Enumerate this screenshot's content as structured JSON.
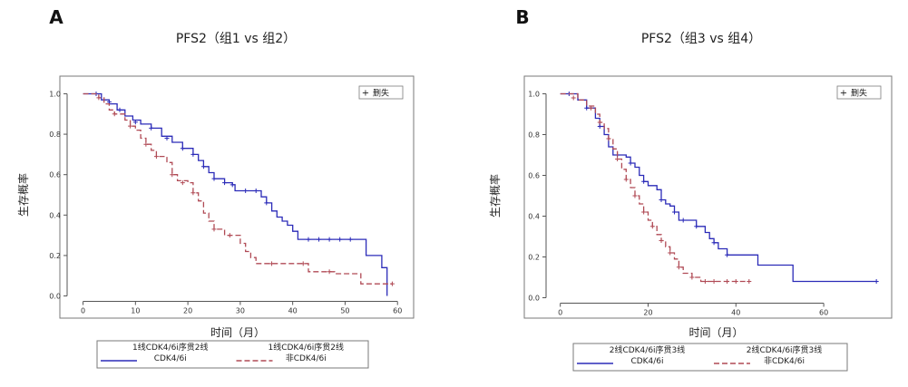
{
  "chart_data": [
    {
      "type": "line",
      "step": true,
      "panel_label": "A",
      "title": "PFS2（组1 vs 组2）",
      "xlabel": "时间（月）",
      "ylabel": "生存概率",
      "xlim": [
        -2,
        61
      ],
      "ylim": [
        -0.02,
        1.02
      ],
      "xticks": [
        0,
        10,
        20,
        30,
        40,
        50,
        60
      ],
      "xtick_labels": [
        "0",
        "10",
        "20",
        "30",
        "40",
        "50",
        "60"
      ],
      "yticks": [
        0.0,
        0.2,
        0.4,
        0.6,
        0.8,
        1.0
      ],
      "ytick_labels": [
        "0.0",
        "0.2",
        "0.4",
        "0.6",
        "0.8",
        "1.0"
      ],
      "inset_legend": {
        "symbol": "+",
        "label": "删失",
        "position": "top-right"
      },
      "series": [
        {
          "name": "1线CDK4/6i序贯2线CDK4/6i",
          "color": "#2b2bb8",
          "dash": false,
          "points": [
            [
              0,
              1.0
            ],
            [
              2.5,
              1.0
            ],
            [
              3.5,
              0.97
            ],
            [
              5,
              0.95
            ],
            [
              6.5,
              0.92
            ],
            [
              8,
              0.89
            ],
            [
              9.5,
              0.87
            ],
            [
              11,
              0.85
            ],
            [
              13,
              0.83
            ],
            [
              15,
              0.79
            ],
            [
              17,
              0.76
            ],
            [
              19,
              0.73
            ],
            [
              21,
              0.7
            ],
            [
              22,
              0.67
            ],
            [
              23,
              0.64
            ],
            [
              24,
              0.61
            ],
            [
              25,
              0.58
            ],
            [
              27,
              0.56
            ],
            [
              28.5,
              0.55
            ],
            [
              29,
              0.52
            ],
            [
              33,
              0.52
            ],
            [
              34,
              0.49
            ],
            [
              35,
              0.46
            ],
            [
              36,
              0.42
            ],
            [
              37,
              0.39
            ],
            [
              38,
              0.37
            ],
            [
              39,
              0.35
            ],
            [
              40,
              0.32
            ],
            [
              41,
              0.28
            ],
            [
              53,
              0.28
            ],
            [
              54,
              0.2
            ],
            [
              57,
              0.14
            ],
            [
              58,
              0.14
            ],
            [
              58,
              0.0
            ]
          ],
          "censored": [
            [
              2.5,
              1.0
            ],
            [
              5,
              0.96
            ],
            [
              7,
              0.92
            ],
            [
              10,
              0.86
            ],
            [
              13,
              0.83
            ],
            [
              16,
              0.78
            ],
            [
              19,
              0.73
            ],
            [
              21,
              0.7
            ],
            [
              23,
              0.64
            ],
            [
              25,
              0.58
            ],
            [
              27,
              0.56
            ],
            [
              28.5,
              0.55
            ],
            [
              31,
              0.52
            ],
            [
              33,
              0.52
            ],
            [
              35,
              0.46
            ],
            [
              43,
              0.28
            ],
            [
              45,
              0.28
            ],
            [
              47,
              0.28
            ],
            [
              49,
              0.28
            ],
            [
              51,
              0.28
            ]
          ]
        },
        {
          "name": "1线CDK4/6i序贯2线非CDK4/6i",
          "color": "#b04a55",
          "dash": true,
          "points": [
            [
              0,
              1.0
            ],
            [
              2,
              1.0
            ],
            [
              3,
              0.98
            ],
            [
              4,
              0.95
            ],
            [
              5,
              0.92
            ],
            [
              6,
              0.9
            ],
            [
              8,
              0.87
            ],
            [
              9,
              0.84
            ],
            [
              10,
              0.82
            ],
            [
              11,
              0.78
            ],
            [
              12,
              0.75
            ],
            [
              13,
              0.72
            ],
            [
              14,
              0.69
            ],
            [
              15,
              0.69
            ],
            [
              16,
              0.66
            ],
            [
              17,
              0.6
            ],
            [
              18,
              0.57
            ],
            [
              20,
              0.56
            ],
            [
              21,
              0.51
            ],
            [
              22,
              0.47
            ],
            [
              23,
              0.41
            ],
            [
              24,
              0.37
            ],
            [
              25,
              0.33
            ],
            [
              26,
              0.33
            ],
            [
              27,
              0.3
            ],
            [
              29,
              0.3
            ],
            [
              30,
              0.26
            ],
            [
              31,
              0.22
            ],
            [
              32,
              0.19
            ],
            [
              33,
              0.16
            ],
            [
              36,
              0.16
            ],
            [
              43,
              0.16
            ],
            [
              43,
              0.12
            ],
            [
              47,
              0.12
            ],
            [
              48,
              0.11
            ],
            [
              53,
              0.11
            ],
            [
              53,
              0.06
            ],
            [
              59,
              0.06
            ]
          ],
          "censored": [
            [
              3,
              0.98
            ],
            [
              6,
              0.9
            ],
            [
              9,
              0.84
            ],
            [
              12,
              0.75
            ],
            [
              14,
              0.69
            ],
            [
              17,
              0.6
            ],
            [
              19,
              0.56
            ],
            [
              21,
              0.51
            ],
            [
              25,
              0.33
            ],
            [
              28,
              0.3
            ],
            [
              36,
              0.16
            ],
            [
              42,
              0.16
            ],
            [
              47,
              0.12
            ],
            [
              59,
              0.06
            ]
          ]
        }
      ]
    },
    {
      "type": "line",
      "step": true,
      "panel_label": "B",
      "title": "PFS2（组3 vs 组4）",
      "xlabel": "时间（月）",
      "ylabel": "生存概率",
      "xlim": [
        -2,
        73
      ],
      "ylim": [
        -0.02,
        1.02
      ],
      "xticks": [
        0,
        20,
        40,
        60
      ],
      "xtick_labels": [
        "0",
        "20",
        "40",
        "60"
      ],
      "yticks": [
        0.0,
        0.2,
        0.4,
        0.6,
        0.8,
        1.0
      ],
      "ytick_labels": [
        "0.0",
        "0.2",
        "0.4",
        "0.6",
        "0.8",
        "1.0"
      ],
      "inset_legend": {
        "symbol": "+",
        "label": "删失",
        "position": "top-right"
      },
      "series": [
        {
          "name": "2线CDK4/6i序贯3线CDK4/6i",
          "color": "#2b2bb8",
          "dash": false,
          "points": [
            [
              0,
              1.0
            ],
            [
              2,
              1.0
            ],
            [
              4,
              0.97
            ],
            [
              6,
              0.93
            ],
            [
              8,
              0.88
            ],
            [
              9,
              0.84
            ],
            [
              10,
              0.8
            ],
            [
              11,
              0.74
            ],
            [
              12,
              0.7
            ],
            [
              14,
              0.7
            ],
            [
              15,
              0.69
            ],
            [
              16,
              0.66
            ],
            [
              17,
              0.64
            ],
            [
              18,
              0.6
            ],
            [
              19,
              0.57
            ],
            [
              20,
              0.55
            ],
            [
              22,
              0.53
            ],
            [
              23,
              0.48
            ],
            [
              24,
              0.46
            ],
            [
              25,
              0.45
            ],
            [
              26,
              0.42
            ],
            [
              27,
              0.38
            ],
            [
              28,
              0.38
            ],
            [
              30,
              0.38
            ],
            [
              31,
              0.35
            ],
            [
              33,
              0.32
            ],
            [
              34,
              0.29
            ],
            [
              35,
              0.27
            ],
            [
              36,
              0.24
            ],
            [
              38,
              0.21
            ],
            [
              45,
              0.21
            ],
            [
              45,
              0.16
            ],
            [
              53,
              0.16
            ],
            [
              53,
              0.08
            ],
            [
              72,
              0.08
            ]
          ],
          "censored": [
            [
              2,
              1.0
            ],
            [
              6,
              0.93
            ],
            [
              9,
              0.84
            ],
            [
              13,
              0.7
            ],
            [
              16,
              0.66
            ],
            [
              19,
              0.57
            ],
            [
              23,
              0.48
            ],
            [
              26,
              0.42
            ],
            [
              28,
              0.38
            ],
            [
              31,
              0.35
            ],
            [
              35,
              0.27
            ],
            [
              38,
              0.21
            ],
            [
              72,
              0.08
            ]
          ]
        },
        {
          "name": "2线CDK4/6i序贯3线非CDK4/6i",
          "color": "#b04a55",
          "dash": true,
          "points": [
            [
              0,
              1.0
            ],
            [
              2,
              1.0
            ],
            [
              4,
              0.97
            ],
            [
              6,
              0.94
            ],
            [
              8,
              0.9
            ],
            [
              9,
              0.86
            ],
            [
              10,
              0.83
            ],
            [
              11,
              0.78
            ],
            [
              12,
              0.73
            ],
            [
              13,
              0.68
            ],
            [
              14,
              0.63
            ],
            [
              15,
              0.58
            ],
            [
              16,
              0.54
            ],
            [
              17,
              0.5
            ],
            [
              18,
              0.46
            ],
            [
              19,
              0.42
            ],
            [
              20,
              0.38
            ],
            [
              21,
              0.35
            ],
            [
              22,
              0.31
            ],
            [
              23,
              0.28
            ],
            [
              24,
              0.25
            ],
            [
              25,
              0.22
            ],
            [
              26,
              0.19
            ],
            [
              27,
              0.15
            ],
            [
              28,
              0.12
            ],
            [
              30,
              0.1
            ],
            [
              32,
              0.08
            ],
            [
              43,
              0.08
            ]
          ],
          "censored": [
            [
              3,
              0.98
            ],
            [
              7,
              0.93
            ],
            [
              9,
              0.86
            ],
            [
              11,
              0.78
            ],
            [
              13,
              0.68
            ],
            [
              15,
              0.58
            ],
            [
              17,
              0.5
            ],
            [
              19,
              0.42
            ],
            [
              21,
              0.35
            ],
            [
              23,
              0.28
            ],
            [
              25,
              0.22
            ],
            [
              27,
              0.15
            ],
            [
              30,
              0.1
            ],
            [
              33,
              0.08
            ],
            [
              35,
              0.08
            ],
            [
              38,
              0.08
            ],
            [
              40,
              0.08
            ],
            [
              43,
              0.08
            ]
          ]
        }
      ]
    }
  ]
}
